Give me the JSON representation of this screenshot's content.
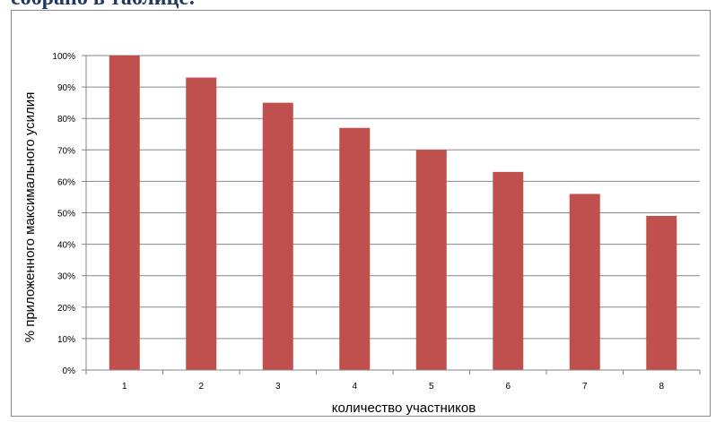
{
  "header_text": "собрано в таблице:",
  "chart_data": {
    "type": "bar",
    "categories": [
      "1",
      "2",
      "3",
      "4",
      "5",
      "6",
      "7",
      "8"
    ],
    "values": [
      100,
      93,
      85,
      77,
      70,
      63,
      56,
      49
    ],
    "xlabel": "количество участников",
    "ylabel": "% приложенного максимального усилия",
    "ylim": [
      0,
      100
    ],
    "yticks": [
      0,
      10,
      20,
      30,
      40,
      50,
      60,
      70,
      80,
      90,
      100
    ],
    "ytick_labels": [
      "0%",
      "10%",
      "20%",
      "30%",
      "40%",
      "50%",
      "60%",
      "70%",
      "80%",
      "90%",
      "100%"
    ],
    "bar_color": "#c0504d",
    "grid_color": "#868686",
    "grid": true,
    "legend": "none"
  }
}
